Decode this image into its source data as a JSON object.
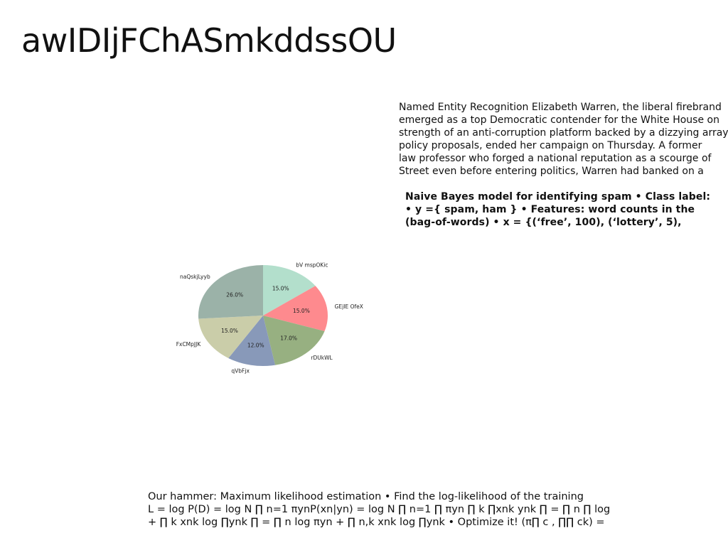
{
  "title": "awIDIjFChASmkddssOU",
  "paragraph": [
    "Named Entity Recognition Elizabeth Warren, the liberal firebrand",
    "emerged as a top Democratic contender for the White House on",
    "strength of an anti-corruption platform backed by a dizzying array",
    "policy proposals, ended her campaign on Thursday. A former",
    "law professor who forged a national reputation as a scourge of",
    "Street even before entering politics, Warren had banked on a"
  ],
  "bold_text": [
    "Naive Bayes model for identifying spam • Class label:",
    "• y ={ spam, ham } • Features: word counts in the",
    "(bag-of-words) • x = {(‘free’, 100), (‘lottery’, 5),"
  ],
  "equation_text": [
    "Our hammer: Maximum likelihood estimation • Find the log-likelihood of the training",
    "L = log P(D) = log N ∏ n=1 πynP(xn|yn) = log N ∏ n=1 ∏ πyn ∏ k ∏xnk ynk ∏ = ∏ n ∏ log",
    "+ ∏ k xnk log ∏ynk ∏ = ∏ n log πyn + ∏ n,k xnk log ∏ynk • Optimize it! (π∏ c , ∏∏ ck) ="
  ],
  "chart_data": {
    "type": "pie",
    "title": "",
    "start_angle_deg": 90,
    "direction": "clockwise",
    "slices": [
      {
        "label": "bV mspOKic",
        "value": 15.0,
        "pct_label": "15.0%",
        "color": "#b3dfcc"
      },
      {
        "label": "GEjIE OfeX",
        "value": 15.0,
        "pct_label": "15.0%",
        "color": "#fe8a8e"
      },
      {
        "label": "rDUkWL",
        "value": 17.0,
        "pct_label": "17.0%",
        "color": "#97b081"
      },
      {
        "label": "qVbFjx",
        "value": 12.0,
        "pct_label": "12.0%",
        "color": "#8899b9"
      },
      {
        "label": "FxCMpJJK",
        "value": 15.0,
        "pct_label": "15.0%",
        "color": "#cacda9"
      },
      {
        "label": "naQskjLyyb",
        "value": 26.0,
        "pct_label": "26.0%",
        "color": "#9bb2a8"
      }
    ]
  }
}
